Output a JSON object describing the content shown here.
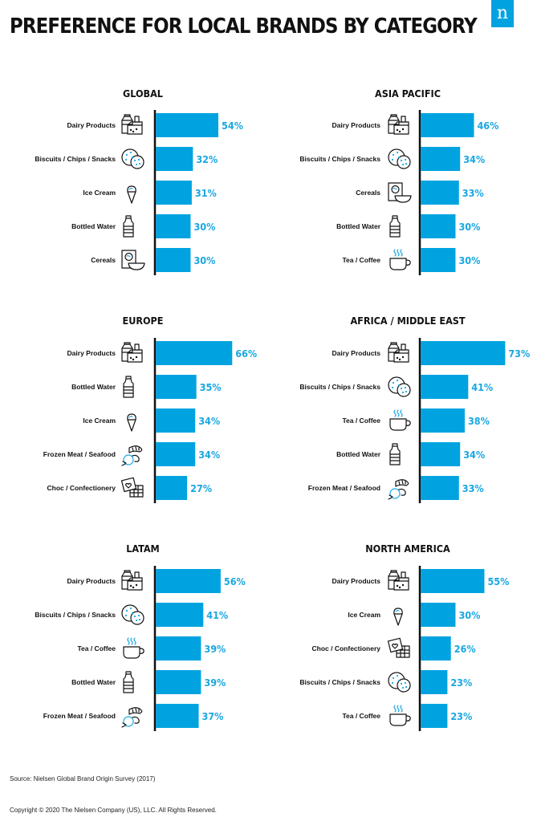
{
  "title": "PREFERENCE FOR LOCAL BRANDS BY CATEGORY",
  "logo_text": "n",
  "source": "Source: Nielsen Global Brand Origin Survey (2017)",
  "copyright": "Copyright © 2020 The Nielsen Company (US), LLC. All Rights Reserved.",
  "colors": {
    "bar": "#00a3e0",
    "value_label": "#1aa7e2",
    "axis": "#111111",
    "logo": "#00a3e0"
  },
  "chart_data": [
    {
      "type": "bar",
      "orientation": "horizontal",
      "title": "GLOBAL",
      "unit": "%",
      "xlim": [
        0,
        73
      ],
      "categories": [
        "Dairy Products",
        "Biscuits / Chips / Snacks",
        "Ice Cream",
        "Bottled Water",
        "Cereals"
      ],
      "icons": [
        "dairy-icon",
        "biscuit-icon",
        "ice-cream-icon",
        "bottle-icon",
        "cereal-icon"
      ],
      "values": [
        54,
        32,
        31,
        30,
        30
      ],
      "labels": [
        "54%",
        "32%",
        "31%",
        "30%",
        "30%"
      ]
    },
    {
      "type": "bar",
      "orientation": "horizontal",
      "title": "ASIA PACIFIC",
      "unit": "%",
      "xlim": [
        0,
        73
      ],
      "categories": [
        "Dairy Products",
        "Biscuits / Chips / Snacks",
        "Cereals",
        "Bottled Water",
        "Tea / Coffee"
      ],
      "icons": [
        "dairy-icon",
        "biscuit-icon",
        "cereal-icon",
        "bottle-icon",
        "tea-cup-icon"
      ],
      "values": [
        46,
        34,
        33,
        30,
        30
      ],
      "labels": [
        "46%",
        "34%",
        "33%",
        "30%",
        "30%"
      ]
    },
    {
      "type": "bar",
      "orientation": "horizontal",
      "title": "EUROPE",
      "unit": "%",
      "xlim": [
        0,
        73
      ],
      "categories": [
        "Dairy Products",
        "Bottled Water",
        "Ice Cream",
        "Frozen Meat / Seafood",
        "Choc / Confectionery"
      ],
      "icons": [
        "dairy-icon",
        "bottle-icon",
        "ice-cream-icon",
        "meat-icon",
        "chocolate-icon"
      ],
      "values": [
        66,
        35,
        34,
        34,
        27
      ],
      "labels": [
        "66%",
        "35%",
        "34%",
        "34%",
        "27%"
      ]
    },
    {
      "type": "bar",
      "orientation": "horizontal",
      "title": "AFRICA / MIDDLE EAST",
      "unit": "%",
      "xlim": [
        0,
        73
      ],
      "categories": [
        "Dairy Products",
        "Biscuits / Chips / Snacks",
        "Tea / Coffee",
        "Bottled Water",
        "Frozen Meat / Seafood"
      ],
      "icons": [
        "dairy-icon",
        "biscuit-icon",
        "tea-cup-icon",
        "bottle-icon",
        "meat-icon"
      ],
      "values": [
        73,
        41,
        38,
        34,
        33
      ],
      "labels": [
        "73%",
        "41%",
        "38%",
        "34%",
        "33%"
      ]
    },
    {
      "type": "bar",
      "orientation": "horizontal",
      "title": "LATAM",
      "unit": "%",
      "xlim": [
        0,
        73
      ],
      "categories": [
        "Dairy Products",
        "Biscuits / Chips / Snacks",
        "Tea / Coffee",
        "Bottled Water",
        "Frozen Meat / Seafood"
      ],
      "icons": [
        "dairy-icon",
        "biscuit-icon",
        "tea-cup-icon",
        "bottle-icon",
        "meat-icon"
      ],
      "values": [
        56,
        41,
        39,
        39,
        37
      ],
      "labels": [
        "56%",
        "41%",
        "39%",
        "39%",
        "37%"
      ]
    },
    {
      "type": "bar",
      "orientation": "horizontal",
      "title": "NORTH AMERICA",
      "unit": "%",
      "xlim": [
        0,
        73
      ],
      "categories": [
        "Dairy Products",
        "Ice Cream",
        "Choc / Confectionery",
        "Biscuits / Chips / Snacks",
        "Tea / Coffee"
      ],
      "icons": [
        "dairy-icon",
        "ice-cream-icon",
        "chocolate-icon",
        "biscuit-icon",
        "tea-cup-icon"
      ],
      "values": [
        55,
        30,
        26,
        23,
        23
      ],
      "labels": [
        "55%",
        "30%",
        "26%",
        "23%",
        "23%"
      ]
    }
  ]
}
